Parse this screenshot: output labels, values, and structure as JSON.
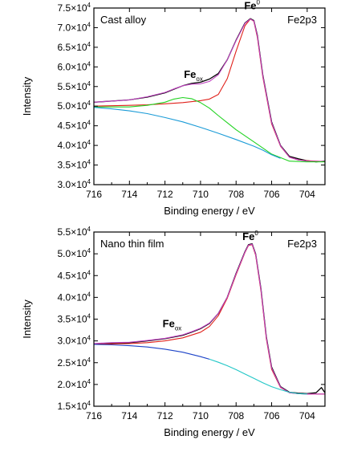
{
  "chart_data": [
    {
      "type": "line",
      "panel_label": "Cast alloy",
      "spectrum_label": "Fe2p3",
      "xlabel": "Binding energy / eV",
      "ylabel": "Intensity",
      "xlim": [
        716,
        703
      ],
      "ylim": [
        30000,
        75000
      ],
      "x_ticks": [
        716,
        714,
        712,
        710,
        708,
        706,
        704
      ],
      "y_ticks": [
        {
          "value": 30000,
          "mantissa": "3.0",
          "exp": "4"
        },
        {
          "value": 35000,
          "mantissa": "3.5",
          "exp": "4"
        },
        {
          "value": 40000,
          "mantissa": "4.0",
          "exp": "4"
        },
        {
          "value": 45000,
          "mantissa": "4.5",
          "exp": "4"
        },
        {
          "value": 50000,
          "mantissa": "5.0",
          "exp": "4"
        },
        {
          "value": 55000,
          "mantissa": "5.5",
          "exp": "4"
        },
        {
          "value": 60000,
          "mantissa": "6.0",
          "exp": "4"
        },
        {
          "value": 65000,
          "mantissa": "6.5",
          "exp": "4"
        },
        {
          "value": 70000,
          "mantissa": "7.0",
          "exp": "4"
        },
        {
          "value": 75000,
          "mantissa": "7.5",
          "exp": "4"
        }
      ],
      "x_tick_prefix": "×10",
      "annotations": [
        {
          "base": "Fe",
          "sub": "ox",
          "sup": "",
          "x": 710.4,
          "y": 57200
        },
        {
          "base": "Fe",
          "sub": "",
          "sup": "0",
          "x": 707.1,
          "y": 74700
        }
      ],
      "series": [
        {
          "color": "#000000",
          "x": [
            716,
            715,
            714,
            713,
            712,
            711.5,
            711,
            710.5,
            710,
            709.5,
            709,
            708.5,
            708,
            707.5,
            707.2,
            707,
            706.8,
            706.5,
            706,
            705.5,
            705,
            704.5,
            704,
            703.5,
            703
          ],
          "y": [
            51000,
            51300,
            51600,
            52300,
            53400,
            54300,
            55200,
            55800,
            56100,
            56900,
            58300,
            61800,
            66800,
            71200,
            72300,
            71800,
            68000,
            58000,
            46000,
            40000,
            37200,
            36600,
            36100,
            35800,
            36000
          ]
        },
        {
          "color": "#e0201a",
          "x": [
            716,
            715,
            714,
            713,
            712,
            711,
            710,
            709.5,
            709,
            708.5,
            708,
            707.5,
            707.2,
            707,
            706.8,
            706.5,
            706,
            705.5,
            705,
            704.5,
            704,
            703
          ],
          "y": [
            50000,
            50100,
            50200,
            50350,
            50600,
            50900,
            51400,
            51800,
            53000,
            57000,
            64000,
            70500,
            72200,
            71600,
            67500,
            57500,
            45500,
            39800,
            37000,
            36300,
            36100,
            35900
          ]
        },
        {
          "color": "#c042c0",
          "x": [
            716,
            715,
            714,
            713,
            712,
            711.5,
            711,
            710.5,
            710,
            709.5,
            709,
            708.5,
            708,
            707.5,
            707.2,
            707,
            706.8,
            706.5,
            706,
            705.5,
            705,
            704.5,
            704,
            703
          ],
          "y": [
            51000,
            51300,
            51600,
            52400,
            53500,
            54400,
            55200,
            55600,
            55700,
            56300,
            58000,
            61800,
            66700,
            71100,
            72200,
            71700,
            67800,
            57800,
            45800,
            39900,
            37000,
            36300,
            36000,
            35900
          ]
        },
        {
          "color": "#22d322",
          "x": [
            716,
            715,
            714,
            713,
            712,
            711.5,
            711,
            710.5,
            710,
            709.5,
            709,
            708.5,
            708,
            707,
            706,
            705,
            704,
            703
          ],
          "y": [
            49800,
            49800,
            49800,
            50200,
            51000,
            51800,
            52200,
            51900,
            50900,
            49500,
            47600,
            45800,
            44000,
            40900,
            37800,
            36000,
            35800,
            35800
          ]
        },
        {
          "color": "#1a9bd7",
          "x": [
            716,
            715,
            714,
            713,
            712,
            711,
            710,
            709,
            708,
            707,
            706.5,
            706,
            705.5
          ],
          "y": [
            49700,
            49300,
            48800,
            48100,
            47100,
            46000,
            44600,
            43100,
            41500,
            39800,
            38800,
            37600,
            36700
          ]
        }
      ]
    },
    {
      "type": "line",
      "panel_label": "Nano thin film",
      "spectrum_label": "Fe2p3",
      "xlabel": "Binding energy / eV",
      "ylabel": "Intensity",
      "xlim": [
        716,
        703
      ],
      "ylim": [
        15000,
        55000
      ],
      "x_ticks": [
        716,
        714,
        712,
        710,
        708,
        706,
        704
      ],
      "y_ticks": [
        {
          "value": 15000,
          "mantissa": "1.5",
          "exp": "4"
        },
        {
          "value": 20000,
          "mantissa": "2.0",
          "exp": "4"
        },
        {
          "value": 25000,
          "mantissa": "2.5",
          "exp": "4"
        },
        {
          "value": 30000,
          "mantissa": "3.0",
          "exp": "4"
        },
        {
          "value": 35000,
          "mantissa": "3.5",
          "exp": "4"
        },
        {
          "value": 40000,
          "mantissa": "4.0",
          "exp": "4"
        },
        {
          "value": 45000,
          "mantissa": "4.5",
          "exp": "4"
        },
        {
          "value": 50000,
          "mantissa": "5.0",
          "exp": "4"
        },
        {
          "value": 55000,
          "mantissa": "5.5",
          "exp": "4"
        }
      ],
      "x_tick_prefix": "×10",
      "annotations": [
        {
          "base": "Fe",
          "sub": "ox",
          "sup": "",
          "x": 711.6,
          "y": 33200
        },
        {
          "base": "Fe",
          "sub": "",
          "sup": "0",
          "x": 707.2,
          "y": 53200
        }
      ],
      "series": [
        {
          "color": "#000000",
          "x": [
            716,
            715,
            714,
            713,
            712,
            711,
            710.5,
            710,
            709.5,
            709,
            708.5,
            708,
            707.5,
            707.3,
            707.1,
            706.9,
            706.6,
            706.3,
            706,
            705.5,
            705,
            704.5,
            704,
            703.5,
            703.2,
            703
          ],
          "y": [
            29300,
            29500,
            29600,
            30000,
            30500,
            31300,
            32000,
            32800,
            34000,
            36300,
            40000,
            45500,
            50500,
            52100,
            52300,
            50000,
            42000,
            31000,
            24000,
            19500,
            18200,
            18000,
            17900,
            18100,
            19300,
            18100
          ]
        },
        {
          "color": "#e0201a",
          "x": [
            716,
            715,
            714,
            713,
            712,
            711,
            710,
            709.5,
            709,
            708.5,
            708,
            707.5,
            707.3,
            707.1,
            706.9,
            706.6,
            706.3,
            706,
            705.5,
            705,
            704.5,
            704,
            703
          ],
          "y": [
            29200,
            29300,
            29400,
            29600,
            30000,
            30700,
            32000,
            33300,
            35800,
            39800,
            45200,
            50300,
            51900,
            52100,
            49700,
            41500,
            30500,
            23500,
            19300,
            18100,
            17900,
            17800,
            17800
          ]
        },
        {
          "color": "#c042c0",
          "x": [
            716,
            715,
            714,
            713,
            712,
            711,
            710.5,
            710,
            709.5,
            709,
            708.5,
            708,
            707.5,
            707.3,
            707.1,
            706.9,
            706.6,
            706.3,
            706,
            705.5,
            705,
            704.5,
            704,
            703
          ],
          "y": [
            29400,
            29600,
            29700,
            30100,
            30600,
            31400,
            32100,
            32900,
            34100,
            36300,
            40000,
            45400,
            50400,
            52000,
            52200,
            49900,
            41800,
            30800,
            23800,
            19400,
            18100,
            17900,
            17800,
            17800
          ]
        },
        {
          "color": "#1c43c8",
          "x": [
            716,
            715,
            714,
            713,
            712,
            711,
            710,
            709.5
          ],
          "y": [
            29200,
            29100,
            28900,
            28600,
            28100,
            27400,
            26400,
            25800
          ]
        },
        {
          "color": "#22c7c7",
          "x": [
            709.5,
            709,
            708.5,
            708,
            707.5,
            707,
            706.5,
            706,
            705.5,
            705,
            704.5,
            704
          ],
          "y": [
            25800,
            25100,
            24300,
            23400,
            22400,
            21400,
            20400,
            19500,
            18800,
            18200,
            17900,
            17800
          ]
        }
      ]
    }
  ]
}
